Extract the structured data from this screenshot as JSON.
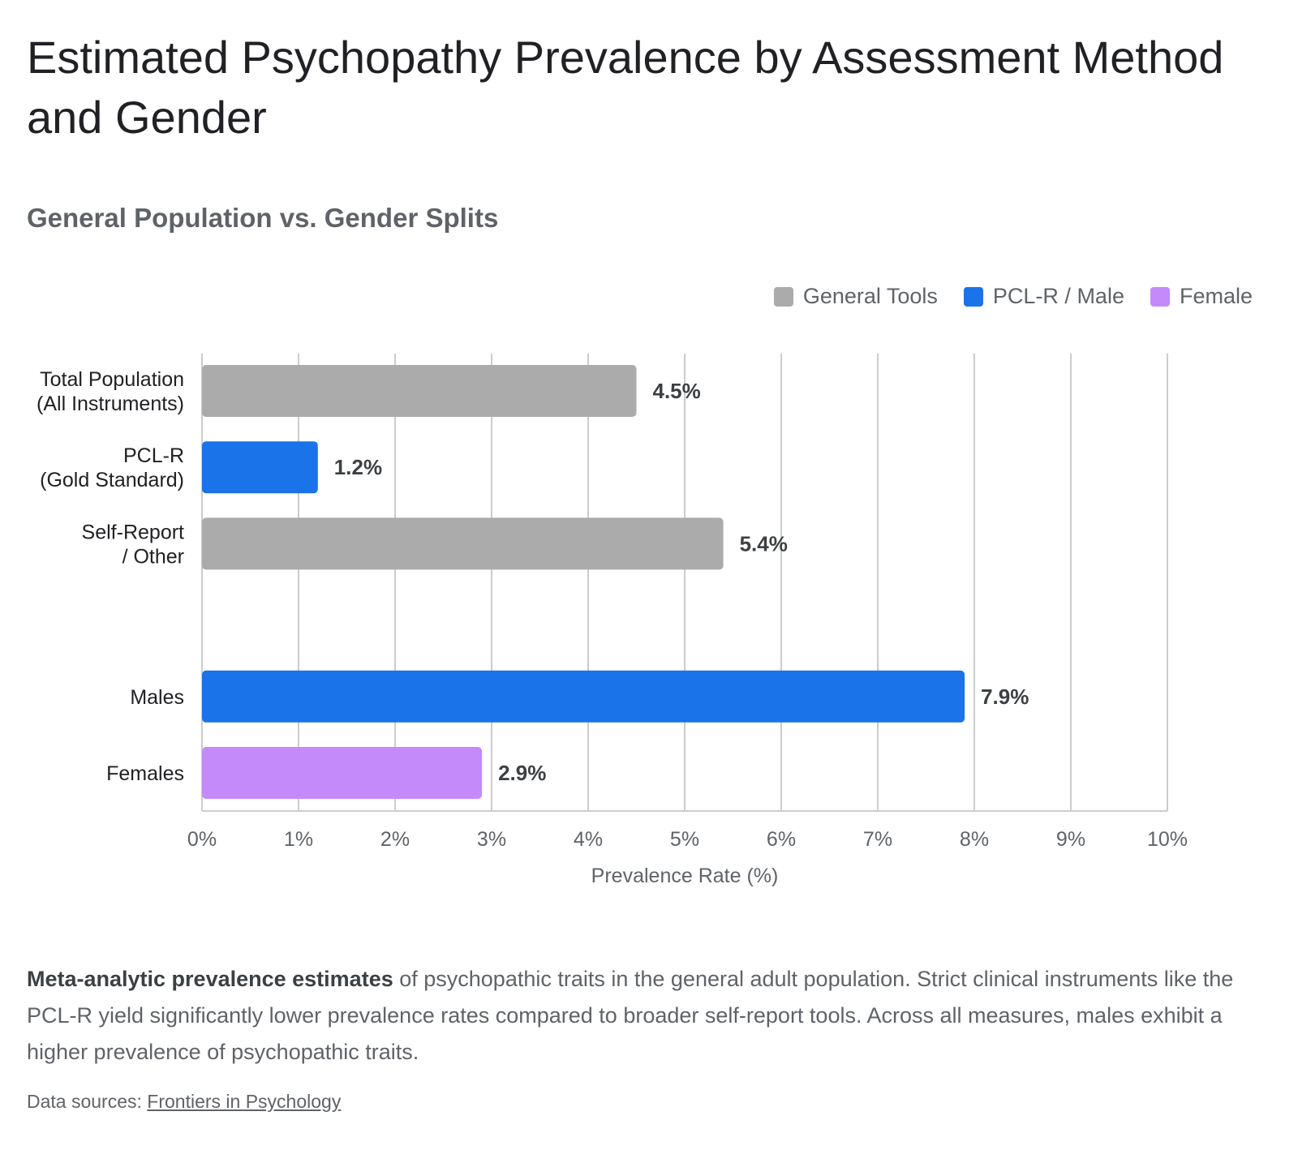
{
  "title": "Estimated Psychopathy Prevalence by Assessment Method and Gender",
  "subtitle": "General Population vs. Gender Splits",
  "legend": [
    {
      "label": "General Tools",
      "color": "#ababab"
    },
    {
      "label": "PCL-R / Male",
      "color": "#1a73e8"
    },
    {
      "label": "Female",
      "color": "#c58af9"
    }
  ],
  "caption": {
    "bold": "Meta-analytic prevalence estimates",
    "text": " of psychopathic traits in the general adult population. Strict clinical instruments like the PCL-R yield significantly lower prevalence rates compared to broader self-report tools. Across all measures, males exhibit a higher prevalence of psychopathic traits."
  },
  "sources": {
    "prefix": "Data sources: ",
    "link": "Frontiers in Psychology"
  },
  "chart_data": {
    "type": "bar",
    "orientation": "horizontal",
    "xlabel": "Prevalence Rate (%)",
    "xlim": [
      0,
      10
    ],
    "x_ticks": [
      "0%",
      "1%",
      "2%",
      "3%",
      "4%",
      "5%",
      "6%",
      "7%",
      "8%",
      "9%",
      "10%"
    ],
    "grid": true,
    "legend_position": "top-right",
    "bars": [
      {
        "label_lines": [
          "Total Population",
          "(All Instruments)"
        ],
        "value": 4.5,
        "value_label": "4.5%",
        "color": "#ababab"
      },
      {
        "label_lines": [
          "PCL-R",
          "(Gold Standard)"
        ],
        "value": 1.2,
        "value_label": "1.2%",
        "color": "#1a73e8"
      },
      {
        "label_lines": [
          "Self-Report",
          "/ Other"
        ],
        "value": 5.4,
        "value_label": "5.4%",
        "color": "#ababab"
      },
      {
        "label_lines": [
          ""
        ],
        "value": null,
        "value_label": "",
        "color": ""
      },
      {
        "label_lines": [
          "Males"
        ],
        "value": 7.9,
        "value_label": "7.9%",
        "color": "#1a73e8"
      },
      {
        "label_lines": [
          "Females"
        ],
        "value": 2.9,
        "value_label": "2.9%",
        "color": "#c58af9"
      }
    ]
  }
}
